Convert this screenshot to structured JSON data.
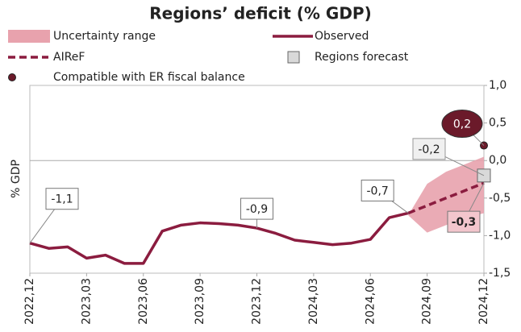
{
  "chart_data": {
    "type": "line",
    "title": "Regions’ deficit (% GDP)",
    "y_label": "% GDP",
    "categories": [
      "2022,12",
      null,
      null,
      "2023,03",
      null,
      null,
      "2023,06",
      null,
      null,
      "2023,09",
      null,
      null,
      "2023,12",
      null,
      null,
      "2024,03",
      null,
      null,
      "2024,06",
      null,
      null,
      "2024,09",
      null,
      null,
      "2024,12"
    ],
    "ylim": [
      -1.5,
      1.0
    ],
    "yticks": [
      {
        "value": 1.0,
        "label": "1,0"
      },
      {
        "value": 0.5,
        "label": "0,5"
      },
      {
        "value": 0.0,
        "label": "0,0"
      },
      {
        "value": -0.5,
        "label": "-0,5"
      },
      {
        "value": -1.0,
        "label": "-1,0"
      },
      {
        "value": -1.5,
        "label": "-1,5"
      }
    ],
    "series": [
      {
        "name": "Uncertainty range",
        "color": "#e8a2ad",
        "kind": "band",
        "lower": [
          null,
          null,
          null,
          null,
          null,
          null,
          null,
          null,
          null,
          null,
          null,
          null,
          null,
          null,
          null,
          null,
          null,
          null,
          null,
          null,
          -0.73,
          -0.96,
          -0.86,
          -0.77,
          -0.7
        ],
        "upper": [
          null,
          null,
          null,
          null,
          null,
          null,
          null,
          null,
          null,
          null,
          null,
          null,
          null,
          null,
          null,
          null,
          null,
          null,
          null,
          null,
          -0.73,
          -0.31,
          -0.15,
          -0.05,
          0.05
        ]
      },
      {
        "name": "Observed",
        "color": "#8b1c3f",
        "kind": "line",
        "values": [
          -1.1,
          -1.17,
          -1.15,
          -1.3,
          -1.26,
          -1.37,
          -1.37,
          -0.94,
          -0.86,
          -0.83,
          -0.84,
          -0.86,
          -0.9,
          -0.97,
          -1.06,
          -1.09,
          -1.12,
          -1.1,
          -1.05,
          -0.76,
          -0.7,
          null,
          null,
          null,
          null
        ],
        "value_labels": [
          "-1,1",
          null,
          null,
          null,
          null,
          null,
          null,
          null,
          null,
          null,
          null,
          null,
          "-0,9",
          null,
          null,
          null,
          null,
          null,
          null,
          null,
          "-0,7",
          null,
          null,
          null,
          null
        ]
      },
      {
        "name": "AIReF",
        "color": "#8b1c3f",
        "kind": "dashed",
        "values": [
          null,
          null,
          null,
          null,
          null,
          null,
          null,
          null,
          null,
          null,
          null,
          null,
          null,
          null,
          null,
          null,
          null,
          null,
          null,
          null,
          -0.7,
          -0.6,
          -0.5,
          -0.4,
          -0.3
        ],
        "value_labels": [
          null,
          null,
          null,
          null,
          null,
          null,
          null,
          null,
          null,
          null,
          null,
          null,
          null,
          null,
          null,
          null,
          null,
          null,
          null,
          null,
          null,
          null,
          null,
          null,
          "-0,3"
        ]
      },
      {
        "name": "Regions forecast",
        "color": "#d9d9d9",
        "kind": "square",
        "values": [
          null,
          null,
          null,
          null,
          null,
          null,
          null,
          null,
          null,
          null,
          null,
          null,
          null,
          null,
          null,
          null,
          null,
          null,
          null,
          null,
          null,
          null,
          null,
          null,
          -0.2
        ],
        "value_labels": [
          null,
          null,
          null,
          null,
          null,
          null,
          null,
          null,
          null,
          null,
          null,
          null,
          null,
          null,
          null,
          null,
          null,
          null,
          null,
          null,
          null,
          null,
          null,
          null,
          "-0,2"
        ]
      },
      {
        "name": "Compatible with ER fiscal balance",
        "color": "#6b1a2a",
        "kind": "dot",
        "values": [
          null,
          null,
          null,
          null,
          null,
          null,
          null,
          null,
          null,
          null,
          null,
          null,
          null,
          null,
          null,
          null,
          null,
          null,
          null,
          null,
          null,
          null,
          null,
          null,
          0.2
        ],
        "value_labels": [
          null,
          null,
          null,
          null,
          null,
          null,
          null,
          null,
          null,
          null,
          null,
          null,
          null,
          null,
          null,
          null,
          null,
          null,
          null,
          null,
          null,
          null,
          null,
          null,
          "0,2"
        ]
      }
    ]
  }
}
